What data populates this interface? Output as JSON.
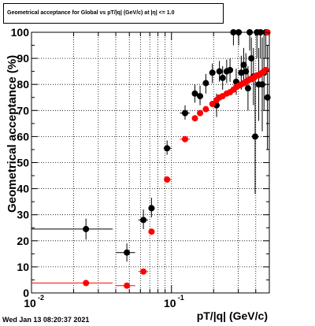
{
  "page": {
    "title": "Geometrical acceptance for Global vs pT/|q| (GeV/c) at |η| <= 1.0",
    "timestamp": "Wed Jan 13 08:20:37 2021"
  },
  "chart_data": {
    "type": "scatter",
    "title": "Geometrical acceptance for Global vs pT/|q| (GeV/c) at |η| <= 1.0",
    "xlabel": "pT/|q| (GeV/c)",
    "ylabel": "Geometrical acceptance (%)",
    "xscale": "log",
    "xlim": [
      0.01,
      0.5
    ],
    "ylim": [
      0,
      100
    ],
    "xticks": [
      {
        "value": 0.01,
        "label": "10",
        "exp": "-2"
      },
      {
        "value": 0.1,
        "label": "10",
        "exp": "-1"
      }
    ],
    "yticks": [
      0,
      10,
      20,
      30,
      40,
      50,
      60,
      70,
      80,
      90,
      100
    ],
    "grid": true,
    "colors": {
      "series_black": "#000000",
      "series_red": "#ff0000",
      "grid": "#000000"
    },
    "series": [
      {
        "color": "#000000",
        "points": [
          {
            "x": 0.0245,
            "y": 24.5,
            "xlo": 0.01,
            "xhi": 0.038,
            "ylo": 20.5,
            "yhi": 28.5
          },
          {
            "x": 0.048,
            "y": 15.5,
            "xlo": 0.04,
            "xhi": 0.055,
            "ylo": 12.0,
            "yhi": 19.0
          },
          {
            "x": 0.063,
            "y": 28.0,
            "xlo": 0.058,
            "xhi": 0.068,
            "ylo": 24.5,
            "yhi": 32.0
          },
          {
            "x": 0.072,
            "y": 32.5,
            "xlo": 0.069,
            "xhi": 0.076,
            "ylo": 29.0,
            "yhi": 36.5
          },
          {
            "x": 0.093,
            "y": 55.5,
            "xlo": 0.088,
            "xhi": 0.1,
            "ylo": 53.0,
            "yhi": 58.5
          },
          {
            "x": 0.125,
            "y": 69.0,
            "xlo": 0.115,
            "xhi": 0.135,
            "ylo": 66.5,
            "yhi": 72.0
          },
          {
            "x": 0.147,
            "y": 76.5,
            "xlo": 0.143,
            "xhi": 0.151,
            "ylo": 73.0,
            "yhi": 80.0
          },
          {
            "x": 0.16,
            "y": 75.5,
            "xlo": 0.156,
            "xhi": 0.164,
            "ylo": 72.0,
            "yhi": 79.5
          },
          {
            "x": 0.176,
            "y": 80.5,
            "xlo": 0.171,
            "xhi": 0.181,
            "ylo": 76.5,
            "yhi": 84.0
          },
          {
            "x": 0.196,
            "y": 84.5,
            "xlo": 0.19,
            "xhi": 0.202,
            "ylo": 80.5,
            "yhi": 88.0
          },
          {
            "x": 0.21,
            "y": 72.0,
            "xlo": 0.205,
            "xhi": 0.215,
            "ylo": 67.5,
            "yhi": 76.5
          },
          {
            "x": 0.22,
            "y": 85.0,
            "xlo": 0.216,
            "xhi": 0.224,
            "ylo": 81.0,
            "yhi": 89.0
          },
          {
            "x": 0.232,
            "y": 82.5,
            "xlo": 0.227,
            "xhi": 0.236,
            "ylo": 78.0,
            "yhi": 87.0
          },
          {
            "x": 0.248,
            "y": 85.0,
            "xlo": 0.243,
            "xhi": 0.253,
            "ylo": 80.5,
            "yhi": 89.5
          },
          {
            "x": 0.262,
            "y": 85.5,
            "xlo": 0.257,
            "xhi": 0.267,
            "ylo": 81.0,
            "yhi": 90.0
          },
          {
            "x": 0.277,
            "y": 100.0,
            "xlo": 0.272,
            "xhi": 0.282,
            "ylo": 95.0,
            "yhi": 100.0
          },
          {
            "x": 0.29,
            "y": 81.0,
            "xlo": 0.285,
            "xhi": 0.295,
            "ylo": 76.0,
            "yhi": 86.0
          },
          {
            "x": 0.302,
            "y": 100.0,
            "xlo": 0.297,
            "xhi": 0.307,
            "ylo": 95.0,
            "yhi": 100.0
          },
          {
            "x": 0.315,
            "y": 84.5,
            "xlo": 0.31,
            "xhi": 0.32,
            "ylo": 78.0,
            "yhi": 91.0
          },
          {
            "x": 0.328,
            "y": 87.5,
            "xlo": 0.323,
            "xhi": 0.333,
            "ylo": 81.0,
            "yhi": 94.0
          },
          {
            "x": 0.34,
            "y": 85.0,
            "xlo": 0.335,
            "xhi": 0.345,
            "ylo": 78.0,
            "yhi": 92.0
          },
          {
            "x": 0.352,
            "y": 78.5,
            "xlo": 0.347,
            "xhi": 0.357,
            "ylo": 70.0,
            "yhi": 87.0
          },
          {
            "x": 0.362,
            "y": 100.0,
            "xlo": 0.358,
            "xhi": 0.366,
            "ylo": 93.0,
            "yhi": 100.0
          },
          {
            "x": 0.372,
            "y": 90.0,
            "xlo": 0.368,
            "xhi": 0.376,
            "ylo": 82.0,
            "yhi": 98.0
          },
          {
            "x": 0.385,
            "y": 83.0,
            "xlo": 0.38,
            "xhi": 0.39,
            "ylo": 72.0,
            "yhi": 94.0
          },
          {
            "x": 0.396,
            "y": 60.0,
            "xlo": 0.392,
            "xhi": 0.4,
            "ylo": 38.0,
            "yhi": 82.0
          },
          {
            "x": 0.408,
            "y": 100.0,
            "xlo": 0.404,
            "xhi": 0.412,
            "ylo": 90.0,
            "yhi": 100.0
          },
          {
            "x": 0.42,
            "y": 80.0,
            "xlo": 0.416,
            "xhi": 0.424,
            "ylo": 66.0,
            "yhi": 94.0
          },
          {
            "x": 0.432,
            "y": 100.0,
            "xlo": 0.428,
            "xhi": 0.436,
            "ylo": 90.0,
            "yhi": 100.0
          },
          {
            "x": 0.445,
            "y": 80.0,
            "xlo": 0.441,
            "xhi": 0.449,
            "ylo": 62.0,
            "yhi": 98.0
          },
          {
            "x": 0.458,
            "y": 84.5,
            "xlo": 0.454,
            "xhi": 0.462,
            "ylo": 70.0,
            "yhi": 99.0
          },
          {
            "x": 0.472,
            "y": 100.0,
            "xlo": 0.468,
            "xhi": 0.476,
            "ylo": 90.0,
            "yhi": 100.0
          },
          {
            "x": 0.485,
            "y": 75.0,
            "xlo": 0.481,
            "xhi": 0.489,
            "ylo": 55.0,
            "yhi": 95.0
          }
        ]
      },
      {
        "color": "#ff0000",
        "points": [
          {
            "x": 0.0245,
            "y": 3.8,
            "xlo": 0.01,
            "xhi": 0.038,
            "ylo": 3.4,
            "yhi": 4.2
          },
          {
            "x": 0.048,
            "y": 2.8,
            "xlo": 0.04,
            "xhi": 0.055,
            "ylo": 2.4,
            "yhi": 3.2
          },
          {
            "x": 0.063,
            "y": 8.2,
            "xlo": 0.058,
            "xhi": 0.068,
            "ylo": 7.6,
            "yhi": 8.8
          },
          {
            "x": 0.072,
            "y": 23.5,
            "xlo": 0.069,
            "xhi": 0.076,
            "ylo": 22.8,
            "yhi": 24.2
          },
          {
            "x": 0.093,
            "y": 43.5,
            "xlo": 0.088,
            "xhi": 0.1,
            "ylo": 42.8,
            "yhi": 44.2
          },
          {
            "x": 0.125,
            "y": 59.0,
            "xlo": 0.115,
            "xhi": 0.135,
            "ylo": 58.3,
            "yhi": 59.7
          },
          {
            "x": 0.147,
            "y": 67.0,
            "xlo": 0.143,
            "xhi": 0.151,
            "ylo": 66.3,
            "yhi": 67.7
          },
          {
            "x": 0.16,
            "y": 69.0,
            "xlo": 0.156,
            "xhi": 0.164,
            "ylo": 68.3,
            "yhi": 69.7
          },
          {
            "x": 0.176,
            "y": 70.5,
            "xlo": 0.171,
            "xhi": 0.181,
            "ylo": 69.8,
            "yhi": 71.2
          },
          {
            "x": 0.196,
            "y": 72.5,
            "xlo": 0.19,
            "xhi": 0.202,
            "ylo": 71.8,
            "yhi": 73.2
          },
          {
            "x": 0.21,
            "y": 74.0,
            "xlo": 0.205,
            "xhi": 0.215,
            "ylo": 73.3,
            "yhi": 74.7
          },
          {
            "x": 0.22,
            "y": 75.0,
            "xlo": 0.216,
            "xhi": 0.224,
            "ylo": 74.3,
            "yhi": 75.7
          },
          {
            "x": 0.232,
            "y": 75.5,
            "xlo": 0.227,
            "xhi": 0.236,
            "ylo": 74.8,
            "yhi": 76.2
          },
          {
            "x": 0.248,
            "y": 76.5,
            "xlo": 0.243,
            "xhi": 0.253,
            "ylo": 75.8,
            "yhi": 77.2
          },
          {
            "x": 0.262,
            "y": 77.0,
            "xlo": 0.257,
            "xhi": 0.267,
            "ylo": 76.3,
            "yhi": 77.7
          },
          {
            "x": 0.277,
            "y": 78.0,
            "xlo": 0.272,
            "xhi": 0.282,
            "ylo": 77.3,
            "yhi": 78.7
          },
          {
            "x": 0.29,
            "y": 79.0,
            "xlo": 0.285,
            "xhi": 0.295,
            "ylo": 78.3,
            "yhi": 79.7
          },
          {
            "x": 0.302,
            "y": 79.5,
            "xlo": 0.297,
            "xhi": 0.307,
            "ylo": 78.8,
            "yhi": 80.2
          },
          {
            "x": 0.315,
            "y": 80.0,
            "xlo": 0.31,
            "xhi": 0.32,
            "ylo": 79.3,
            "yhi": 80.7
          },
          {
            "x": 0.328,
            "y": 80.5,
            "xlo": 0.323,
            "xhi": 0.333,
            "ylo": 79.8,
            "yhi": 81.2
          },
          {
            "x": 0.34,
            "y": 81.0,
            "xlo": 0.335,
            "xhi": 0.345,
            "ylo": 80.3,
            "yhi": 81.7
          },
          {
            "x": 0.352,
            "y": 81.5,
            "xlo": 0.347,
            "xhi": 0.357,
            "ylo": 80.8,
            "yhi": 82.2
          },
          {
            "x": 0.362,
            "y": 82.0,
            "xlo": 0.358,
            "xhi": 0.366,
            "ylo": 81.3,
            "yhi": 82.7
          },
          {
            "x": 0.372,
            "y": 82.0,
            "xlo": 0.368,
            "xhi": 0.376,
            "ylo": 81.3,
            "yhi": 82.7
          },
          {
            "x": 0.385,
            "y": 82.5,
            "xlo": 0.38,
            "xhi": 0.39,
            "ylo": 81.8,
            "yhi": 83.2
          },
          {
            "x": 0.396,
            "y": 83.0,
            "xlo": 0.392,
            "xhi": 0.4,
            "ylo": 82.3,
            "yhi": 83.7
          },
          {
            "x": 0.408,
            "y": 83.5,
            "xlo": 0.404,
            "xhi": 0.412,
            "ylo": 82.8,
            "yhi": 84.2
          },
          {
            "x": 0.42,
            "y": 83.5,
            "xlo": 0.416,
            "xhi": 0.424,
            "ylo": 82.8,
            "yhi": 84.2
          },
          {
            "x": 0.432,
            "y": 84.0,
            "xlo": 0.428,
            "xhi": 0.436,
            "ylo": 83.3,
            "yhi": 84.7
          },
          {
            "x": 0.445,
            "y": 84.5,
            "xlo": 0.441,
            "xhi": 0.449,
            "ylo": 83.8,
            "yhi": 85.2
          },
          {
            "x": 0.458,
            "y": 85.0,
            "xlo": 0.454,
            "xhi": 0.462,
            "ylo": 84.3,
            "yhi": 85.7
          },
          {
            "x": 0.472,
            "y": 85.5,
            "xlo": 0.468,
            "xhi": 0.476,
            "ylo": 84.8,
            "yhi": 86.2
          },
          {
            "x": 0.485,
            "y": 100.0,
            "xlo": 0.481,
            "xhi": 0.489,
            "ylo": 99.3,
            "yhi": 100.0
          }
        ]
      }
    ]
  }
}
